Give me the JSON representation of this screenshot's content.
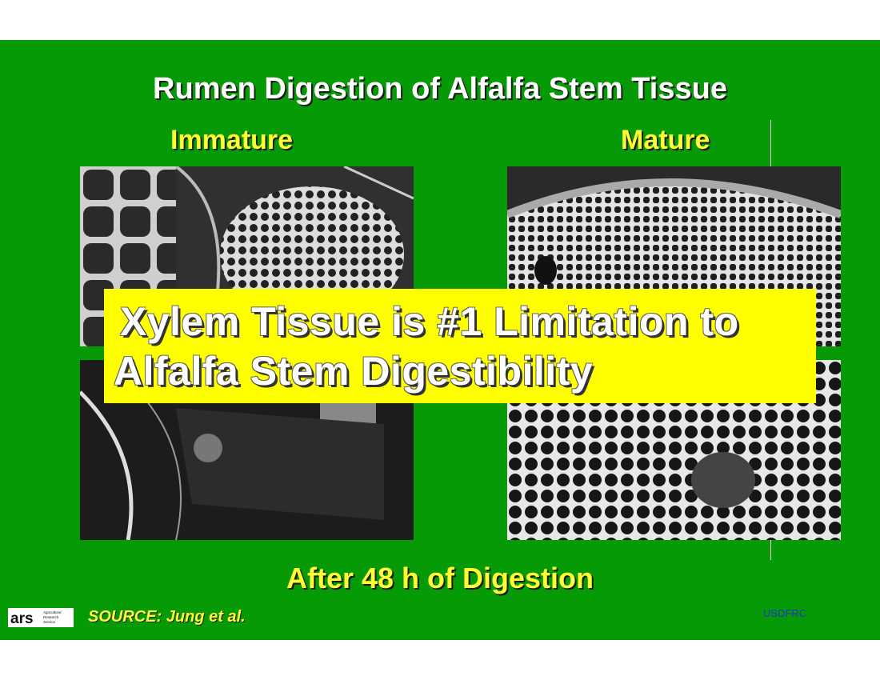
{
  "slide": {
    "title": "Rumen Digestion of Alfalfa Stem Tissue",
    "label_left": "Immature",
    "label_right": "Mature",
    "banner_line1": "Xylem Tissue is #1 Limitation to",
    "banner_line2": "Alfalfa Stem Digestibility",
    "caption": "After 48 h of Digestion",
    "source": "SOURCE:  Jung et al.",
    "credit": "USDFRC"
  },
  "logo": {
    "text": "ars",
    "subtitle": "Agricultural Research Service"
  },
  "colors": {
    "background": "#069a06",
    "heading_yellow": "#ffff33",
    "banner_yellow": "#ffff00",
    "credit_blue": "#2233cc"
  }
}
